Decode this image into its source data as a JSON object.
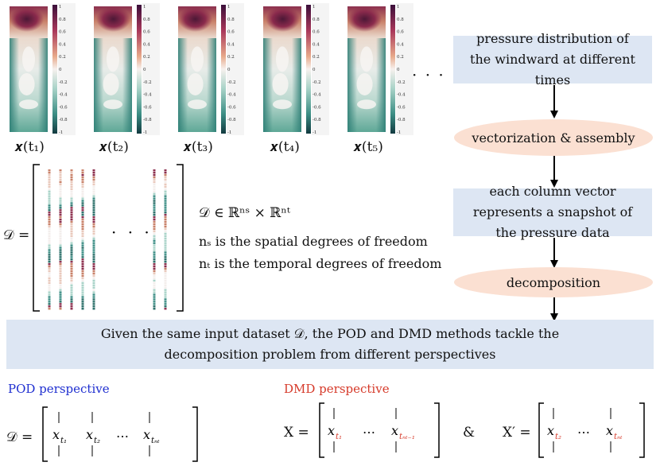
{
  "snapshots": [
    {
      "label": "𝒙(t₁)"
    },
    {
      "label": "𝒙(t₂)"
    },
    {
      "label": "𝒙(t₃)"
    },
    {
      "label": "𝒙(t₄)"
    },
    {
      "label": "𝒙(t₅)"
    }
  ],
  "colorbar_ticks": [
    "1",
    "0.8",
    "0.6",
    "0.4",
    "0.2",
    "0",
    "-0.2",
    "-0.4",
    "-0.6",
    "-0.8",
    "-1"
  ],
  "ellipsis": "· · ·",
  "flow": {
    "box1": "pressure distribution of the windward at different times",
    "oval1": "vectorization & assembly",
    "box2": "each column vector represents a snapshot of the pressure data",
    "oval2": "decomposition",
    "banner": "Given the same input dataset 𝒟, the POD and DMD methods tackle the decomposition problem from different perspectives"
  },
  "matrix": {
    "lhs": "𝒟 =",
    "def": "𝒟 ∈ ℝⁿˢ × ℝⁿᵗ",
    "ns_text": "nₛ is the spatial degrees of freedom",
    "nt_text": "nₜ is the temporal degrees of freedom"
  },
  "pod": {
    "title": "POD perspective",
    "lhs": "𝒟 =",
    "cols": [
      "x",
      "x",
      "x"
    ],
    "subs": [
      "t₁",
      "t₂",
      "tₙₜ"
    ],
    "dots": "…"
  },
  "dmd": {
    "title": "DMD perspective",
    "x_lhs": "X =",
    "x_cols": [
      "x",
      "x"
    ],
    "x_subs": [
      "t₁",
      "tₙₜ₋₁"
    ],
    "amp": "&",
    "xp_lhs": "X′ =",
    "xp_cols": [
      "x",
      "x"
    ],
    "xp_subs": [
      "t₂",
      "tₙₜ"
    ],
    "dots": "…"
  },
  "colors": {
    "box": "#dde6f3",
    "oval": "#fbe0d2",
    "pod": "#1f2fd0",
    "dmd": "#d63a2a"
  }
}
